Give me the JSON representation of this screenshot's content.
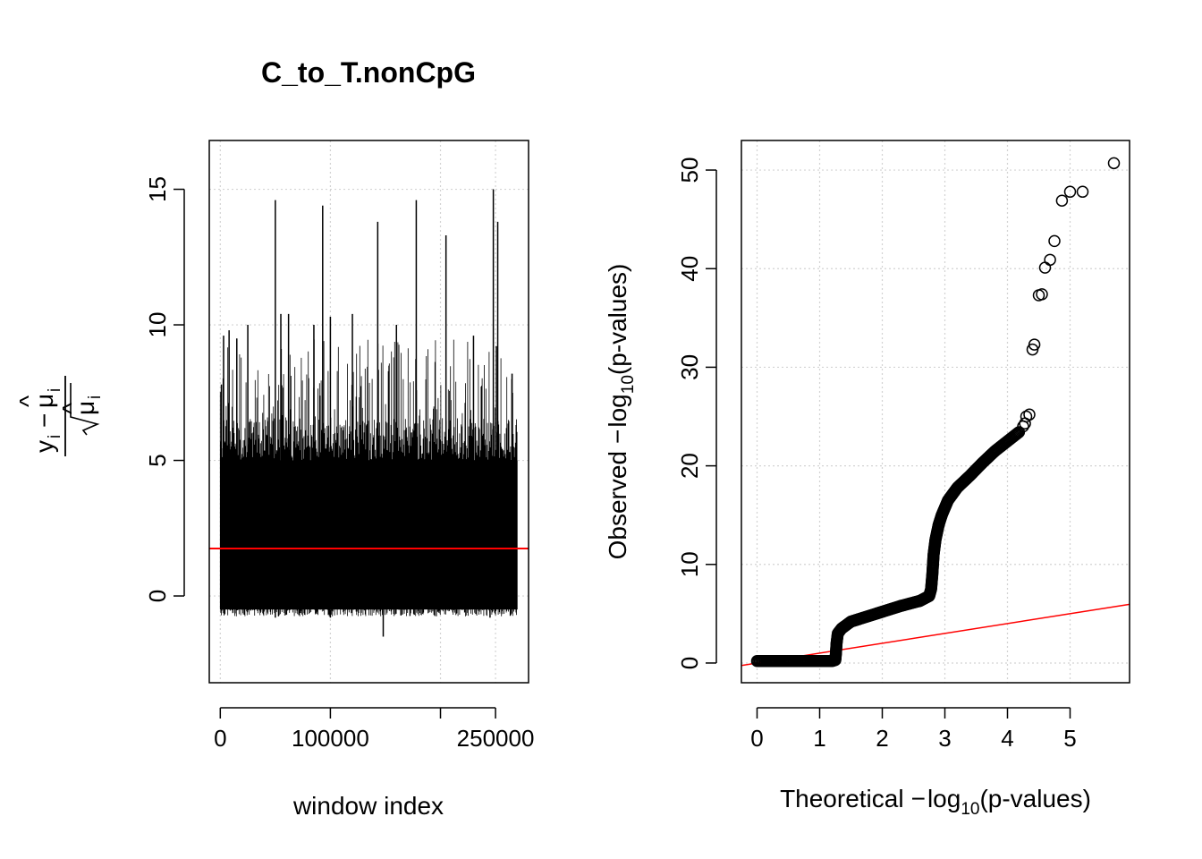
{
  "figure": {
    "title": "C_to_T.nonCpG"
  },
  "chart_data": [
    {
      "type": "line",
      "xlabel": "window index",
      "ylabel": "y_i − μ̂_i / √μ̂_i",
      "xticks": [
        "0",
        "100000",
        "250000"
      ],
      "xtick_values": [
        0,
        100000,
        200000,
        250000
      ],
      "yticks": [
        "0",
        "5",
        "10",
        "15"
      ],
      "ytick_values": [
        0,
        5,
        10,
        15
      ],
      "xlim": [
        -10000,
        280000
      ],
      "ylim": [
        -3.2,
        16.8
      ],
      "grid": true,
      "n_windows": 270000,
      "band": {
        "low": -0.5,
        "high": 5.0,
        "typical_peak": 9.5
      },
      "min_value": -1.5,
      "reference_line": {
        "y": 1.75,
        "color": "#ff0000"
      },
      "spikes": [
        {
          "x": 1000,
          "y": 7.8
        },
        {
          "x": 3000,
          "y": 9.6
        },
        {
          "x": 8000,
          "y": 9.8
        },
        {
          "x": 15000,
          "y": 9.5
        },
        {
          "x": 25000,
          "y": 10.0
        },
        {
          "x": 50000,
          "y": 14.6
        },
        {
          "x": 55000,
          "y": 10.4
        },
        {
          "x": 62000,
          "y": 10.4
        },
        {
          "x": 85000,
          "y": 10.0
        },
        {
          "x": 93000,
          "y": 14.4
        },
        {
          "x": 100000,
          "y": 10.3
        },
        {
          "x": 120000,
          "y": 10.4
        },
        {
          "x": 143000,
          "y": 13.8
        },
        {
          "x": 160000,
          "y": 10.0
        },
        {
          "x": 178000,
          "y": 14.6
        },
        {
          "x": 205000,
          "y": 13.3
        },
        {
          "x": 230000,
          "y": 9.6
        },
        {
          "x": 248000,
          "y": 15.0
        },
        {
          "x": 252000,
          "y": 13.8
        },
        {
          "x": 265000,
          "y": 8.2
        }
      ],
      "dips": [
        {
          "x": 148000,
          "y": -1.5
        },
        {
          "x": 50000,
          "y": -0.8
        },
        {
          "x": 100000,
          "y": -0.8
        },
        {
          "x": 245000,
          "y": -0.8
        }
      ]
    },
    {
      "type": "scatter",
      "xlabel": "Theoretical −log10(p-values)",
      "ylabel": "Observed −log10(p-values)",
      "xticks": [
        "0",
        "1",
        "2",
        "3",
        "4",
        "5"
      ],
      "xtick_values": [
        0,
        1,
        2,
        3,
        4,
        5
      ],
      "yticks": [
        "0",
        "10",
        "20",
        "30",
        "40",
        "50"
      ],
      "ytick_values": [
        0,
        10,
        20,
        30,
        40,
        50
      ],
      "xlim": [
        -0.25,
        5.95
      ],
      "ylim": [
        -2.0,
        53.0
      ],
      "grid": true,
      "reference_line": {
        "x": [
          -0.25,
          5.95
        ],
        "y": [
          -0.25,
          5.95
        ],
        "color": "#ff0000"
      },
      "dense_curve": [
        [
          0,
          0.2
        ],
        [
          0.5,
          0.2
        ],
        [
          1.0,
          0.2
        ],
        [
          1.2,
          0.2
        ],
        [
          1.25,
          0.3
        ],
        [
          1.26,
          1.0
        ],
        [
          1.27,
          2.0
        ],
        [
          1.29,
          3.0
        ],
        [
          1.35,
          3.5
        ],
        [
          1.5,
          4.2
        ],
        [
          1.7,
          4.6
        ],
        [
          2.0,
          5.2
        ],
        [
          2.3,
          5.8
        ],
        [
          2.6,
          6.3
        ],
        [
          2.75,
          6.8
        ],
        [
          2.78,
          7.5
        ],
        [
          2.8,
          9.0
        ],
        [
          2.82,
          11.0
        ],
        [
          2.85,
          12.5
        ],
        [
          2.9,
          14.0
        ],
        [
          2.95,
          15.0
        ],
        [
          3.05,
          16.5
        ],
        [
          3.2,
          17.8
        ],
        [
          3.4,
          19.0
        ],
        [
          3.6,
          20.3
        ],
        [
          3.8,
          21.5
        ],
        [
          4.0,
          22.5
        ],
        [
          4.2,
          23.5
        ]
      ],
      "points": [
        [
          4.25,
          24.0
        ],
        [
          4.28,
          24.3
        ],
        [
          4.3,
          25.0
        ],
        [
          4.35,
          25.2
        ],
        [
          4.4,
          31.8
        ],
        [
          4.43,
          32.3
        ],
        [
          4.5,
          37.3
        ],
        [
          4.55,
          37.4
        ],
        [
          4.6,
          40.1
        ],
        [
          4.68,
          40.9
        ],
        [
          4.75,
          42.8
        ],
        [
          4.87,
          46.9
        ],
        [
          5.0,
          47.8
        ],
        [
          5.2,
          47.8
        ],
        [
          5.7,
          50.7
        ]
      ]
    }
  ]
}
